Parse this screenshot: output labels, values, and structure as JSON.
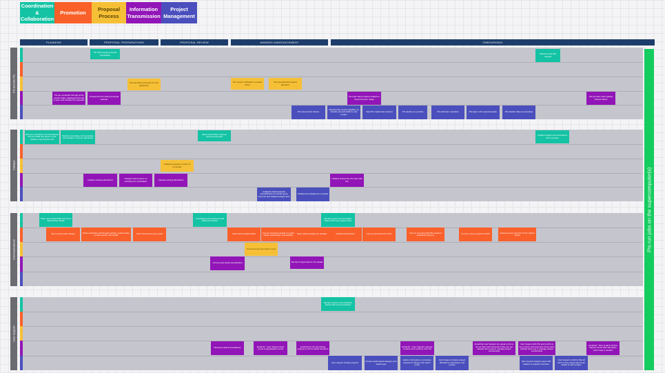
{
  "legend": [
    {
      "label": "Coordination & Collaboration",
      "color": "#13c3a4"
    },
    {
      "label": "Promotion",
      "color": "#f9602a"
    },
    {
      "label": "Proposal Process",
      "color": "#f6c036"
    },
    {
      "label": "Information Transmission",
      "color": "#9215b7"
    },
    {
      "label": "Project Management",
      "color": "#4a4fbd"
    }
  ],
  "phases": [
    "PLANNING",
    "PROPOSAL PREPARATIONS",
    "PROPOSAL REVIEW",
    "AWARDS ANNOUNCEMENT",
    "ONBOARDING"
  ],
  "lanes": [
    "PIs and the PIs",
    "Catalyst",
    "Communications",
    "User Support"
  ],
  "right_bar": "PIs run jobs on the supercomputer(s)",
  "cards": {
    "pis": [
      {
        "text": "PIs Start supply proposal preparation",
        "cat": "coord"
      },
      {
        "text": "Welcome call with 'request'",
        "cat": "coord"
      },
      {
        "text": "PIs submitting proposal for their application",
        "cat": "prop"
      },
      {
        "text": "PIs receive notification of award status",
        "cat": "prop"
      },
      {
        "text": "PIs accept/decline award allocation",
        "cat": "prop"
      },
      {
        "text": "PIs are contacted through email social media, colleagues that call is open and website for proposals",
        "cat": "info"
      },
      {
        "text": "Prospective PIs attend proposal webinar",
        "cat": "info"
      },
      {
        "text": "PIs learn about policies related to supercomputer usage",
        "cat": "info"
      },
      {
        "text": "PIs are learn each getting started videos",
        "cat": "info"
      },
      {
        "text": "PIs receive their shares",
        "cat": "pm"
      },
      {
        "text": "Ordering PIs receive deadline on transfer (of) and chalk to new project",
        "cat": "pm"
      },
      {
        "text": "New PIs create their account",
        "cat": "pm"
      },
      {
        "text": "PIs decide on a priority",
        "cat": "pm"
      },
      {
        "text": "PIs add team members",
        "cat": "pm"
      },
      {
        "text": "PIs login to the supercomputer",
        "cat": "pm"
      },
      {
        "text": "PIs transfer data as necessary",
        "cat": "pm"
      }
    ],
    "catalyst": [
      {
        "text": "Science committee communications with the DOE and agree on the details of opening the call",
        "cat": "coord"
      },
      {
        "text": "Science committee communicates with Quaker on timely call details",
        "cat": "coord"
      },
      {
        "text": "Meets with DOE to discuss winning proposals",
        "cat": "coord"
      },
      {
        "text": "Catalyst triages communications with members",
        "cat": "coord"
      },
      {
        "text": "Catalyst proposes number of proposals",
        "cat": "prop"
      },
      {
        "text": "Catalyst existing allocations",
        "cat": "info"
      },
      {
        "text": "Catalyst track tenants on workshop for candidates",
        "cat": "info"
      },
      {
        "text": "Catalyst existing allocations",
        "cat": "info"
      },
      {
        "text": "Catalyst shares the info sites with PIs",
        "cat": "info"
      },
      {
        "text": "Catalysts shared awards spreadsheets to include quota amounts and catalyst assignments",
        "cat": "pm"
      },
      {
        "text": "Catalyst are assigned to a project",
        "cat": "pm"
      }
    ],
    "comms": [
      {
        "text": "Team meets with DOE comms on award/other details",
        "cat": "coord"
      },
      {
        "text": "Coordinate announcement with DOE and AU(AC)",
        "cat": "coord"
      },
      {
        "text": "Monitor report communication shared with user support team",
        "cat": "coord"
      },
      {
        "text": "Team sends news release",
        "cat": "promo"
      },
      {
        "text": "Teams advertise call through website, social media, in user events, and emails",
        "cat": "promo"
      },
      {
        "text": "Team announces and emails",
        "cat": "promo"
      },
      {
        "text": "Team writes award article",
        "cat": "promo"
      },
      {
        "text": "Comms produces awards in social media, social blogs, and website",
        "cat": "promo"
      },
      {
        "text": "Team writes program for website",
        "cat": "promo"
      },
      {
        "text": "publish award article",
        "cat": "promo"
      },
      {
        "text": "Comms promotes PIs news",
        "cat": "promo"
      },
      {
        "text": "Comms promotes INCITE results of awarded programs",
        "cat": "promo"
      },
      {
        "text": "Comms comes consult to AGW",
        "cat": "promo"
      },
      {
        "text": "Systems posts (promo) for the related needs",
        "cat": "promo"
      },
      {
        "text": "Announcement promotion event",
        "cat": "prop"
      },
      {
        "text": "Comms gets award spreadsheet",
        "cat": "info"
      },
      {
        "text": "Set the PI approvals for the details",
        "cat": "info"
      }
    ],
    "support": [
      {
        "text": "Monitor search communication shared with communications",
        "cat": "coord"
      },
      {
        "text": "Receives award spreadsheet",
        "cat": "info"
      },
      {
        "text": "Email #1 - User Support team sends congratulations email",
        "cat": "info"
      },
      {
        "text": "Email list for the all existing projects to inform award decisions",
        "cat": "info"
      },
      {
        "text": "Email #2 - User Support requests contacts and numbers from PIs",
        "cat": "info"
      },
      {
        "text": "Email the User Support the quota to the to set up their work accounts if they are not already have used to manage project membership",
        "cat": "info"
      },
      {
        "text": "User Support with PIs and Co-PIs to set up their work accounts if they don't already have one to manage project membership",
        "cat": "info"
      },
      {
        "text": "Email #3 - Sent email to PI that Support sends their allocation, and it help is needed",
        "cat": "info"
      },
      {
        "text": "User support creates projects",
        "cat": "pm"
      },
      {
        "text": "Create needs award category and award type",
        "cat": "pm"
      },
      {
        "text": "Gather information on previous projects for 'Below Your Open' email",
        "cat": "pm"
      },
      {
        "text": "User Support creates project allocations, directories, and quotas",
        "cat": "pm"
      },
      {
        "text": "User support assigns users with relation to projects members",
        "cat": "pm"
      },
      {
        "text": "User Support confirms that all users in the project have been added to each project",
        "cat": "pm"
      }
    ]
  }
}
